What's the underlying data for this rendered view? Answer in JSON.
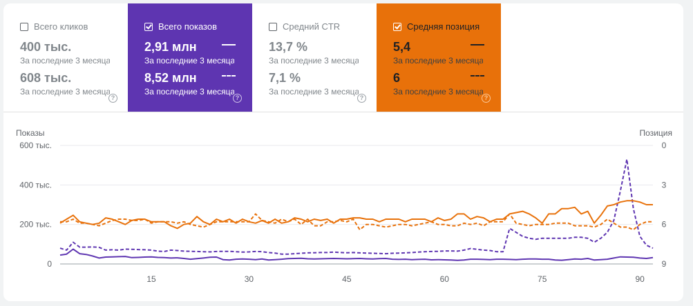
{
  "metrics": [
    {
      "label": "Всего кликов",
      "checked": false,
      "value1": "400 тыс.",
      "sub1": "За последние 3 месяца",
      "value2": "608 тыс.",
      "sub2": "За последние 3 месяца",
      "help": "?"
    },
    {
      "label": "Всего показов",
      "checked": true,
      "value1": "2,91 млн",
      "sub1": "За последние 3 месяца",
      "value2": "8,52 млн",
      "sub2": "За последние 3 месяца",
      "help": "?"
    },
    {
      "label": "Средний CTR",
      "checked": false,
      "value1": "13,7 %",
      "sub1": "За последние 3 месяца",
      "value2": "7,1 %",
      "sub2": "За последние 3 месяца",
      "help": "?"
    },
    {
      "label": "Средняя позиция",
      "checked": true,
      "value1": "5,4",
      "sub1": "За последние 3 месяца",
      "value2": "6",
      "sub2": "За последние 3 месяца",
      "help": "?"
    }
  ],
  "chart_data": {
    "type": "line",
    "ylabel_left": "Показы",
    "ylabel_right": "Позиция",
    "left_ticks": [
      "0",
      "200 тыс.",
      "400 тыс.",
      "600 тыс."
    ],
    "right_ticks": [
      "0",
      "3",
      "6",
      "9"
    ],
    "x_ticks": [
      "15",
      "30",
      "45",
      "60",
      "75",
      "90"
    ],
    "ylim_left": [
      0,
      600000
    ],
    "ylim_right": [
      0,
      9
    ],
    "xlim": [
      1,
      92
    ],
    "colors": {
      "impressions": "#5e35b1",
      "position": "#e8710a"
    },
    "series": [
      {
        "metric": "impressions",
        "period": "current",
        "style": "solid",
        "values": [
          45000,
          50000,
          75000,
          52000,
          48000,
          40000,
          30000,
          35000,
          36000,
          37000,
          38000,
          32000,
          33000,
          35000,
          36000,
          33000,
          32000,
          30000,
          31000,
          28000,
          24000,
          27000,
          30000,
          34000,
          35000,
          22000,
          20000,
          24000,
          25000,
          24000,
          22000,
          25000,
          20000,
          22000,
          24000,
          27000,
          28000,
          29000,
          26000,
          25000,
          26000,
          27000,
          28000,
          27000,
          26000,
          27000,
          28000,
          26000,
          25000,
          27000,
          28000,
          24000,
          23000,
          24000,
          22000,
          23000,
          24000,
          21000,
          22000,
          21000,
          20000,
          18000,
          20000,
          24000,
          24000,
          23000,
          22000,
          24000,
          24000,
          23000,
          22000,
          24000,
          25000,
          25000,
          24000,
          24000,
          20000,
          19000,
          22000,
          25000,
          24000,
          28000,
          20000,
          22000,
          24000,
          30000,
          36000,
          35000,
          34000,
          30000,
          28000,
          32000
        ]
      },
      {
        "metric": "impressions",
        "period": "previous",
        "style": "dashed",
        "values": [
          80000,
          70000,
          110000,
          85000,
          85000,
          86000,
          84000,
          70000,
          72000,
          70000,
          75000,
          74000,
          73000,
          72000,
          70000,
          65000,
          63000,
          70000,
          68000,
          65000,
          64000,
          63000,
          62000,
          61000,
          63000,
          64000,
          64000,
          62000,
          60000,
          61000,
          63000,
          62000,
          58000,
          55000,
          50000,
          50000,
          52000,
          54000,
          56000,
          57000,
          58000,
          58000,
          60000,
          58000,
          57000,
          58000,
          56000,
          55000,
          54000,
          53000,
          52000,
          54000,
          55000,
          56000,
          58000,
          60000,
          62000,
          63000,
          64000,
          66000,
          66000,
          65000,
          70000,
          78000,
          74000,
          70000,
          68000,
          62000,
          62000,
          180000,
          160000,
          140000,
          130000,
          125000,
          130000,
          130000,
          130000,
          130000,
          130000,
          135000,
          135000,
          130000,
          110000,
          130000,
          160000,
          220000,
          370000,
          530000,
          280000,
          140000,
          95000,
          80000
        ]
      },
      {
        "metric": "position",
        "period": "current",
        "style": "solid",
        "values": [
          5.9,
          5.6,
          5.3,
          5.8,
          5.9,
          6.0,
          5.9,
          5.5,
          5.6,
          5.8,
          6.0,
          5.7,
          5.6,
          5.6,
          5.8,
          5.8,
          5.8,
          6.1,
          6.3,
          6.0,
          5.9,
          5.4,
          5.8,
          6.0,
          5.6,
          5.8,
          5.6,
          5.9,
          5.6,
          5.8,
          5.9,
          5.7,
          5.9,
          5.6,
          5.9,
          5.8,
          5.5,
          5.6,
          5.8,
          5.6,
          5.7,
          5.6,
          5.9,
          5.6,
          5.6,
          5.5,
          5.5,
          5.6,
          5.6,
          5.8,
          5.6,
          5.6,
          5.6,
          5.8,
          5.6,
          5.6,
          5.6,
          5.8,
          5.5,
          5.7,
          5.6,
          5.2,
          5.2,
          5.6,
          5.4,
          5.5,
          5.8,
          5.6,
          5.6,
          5.2,
          5.1,
          5.0,
          5.2,
          5.5,
          5.9,
          5.2,
          5.2,
          4.8,
          4.8,
          4.7,
          5.2,
          5.0,
          5.9,
          5.3,
          4.6,
          4.5,
          4.3,
          4.2,
          4.2,
          4.3,
          4.5,
          4.5
        ]
      },
      {
        "metric": "position",
        "period": "previous",
        "style": "dashed",
        "values": [
          5.8,
          5.8,
          5.6,
          5.9,
          5.9,
          6.0,
          6.1,
          5.9,
          5.7,
          5.6,
          5.6,
          5.7,
          5.7,
          5.6,
          5.9,
          5.8,
          5.8,
          5.8,
          5.9,
          5.8,
          6.0,
          6.1,
          6.2,
          6.0,
          5.8,
          5.8,
          5.8,
          5.8,
          5.8,
          5.8,
          5.2,
          5.7,
          5.8,
          5.9,
          5.6,
          5.8,
          5.6,
          6.0,
          5.6,
          6.1,
          6.1,
          5.8,
          5.8,
          5.7,
          5.8,
          5.6,
          6.4,
          6.0,
          6.0,
          6.1,
          6.2,
          6.1,
          6.0,
          6.0,
          6.1,
          6.0,
          5.9,
          5.8,
          6.0,
          6.0,
          6.1,
          6.1,
          5.9,
          6.0,
          5.9,
          6.1,
          5.8,
          5.8,
          5.8,
          5.2,
          5.9,
          6.0,
          6.1,
          6.0,
          6.0,
          6.0,
          5.9,
          5.9,
          5.9,
          6.1,
          6.1,
          6.1,
          6.2,
          6.0,
          5.6,
          5.9,
          6.2,
          6.2,
          6.4,
          6.0,
          5.8,
          5.8
        ]
      }
    ]
  }
}
